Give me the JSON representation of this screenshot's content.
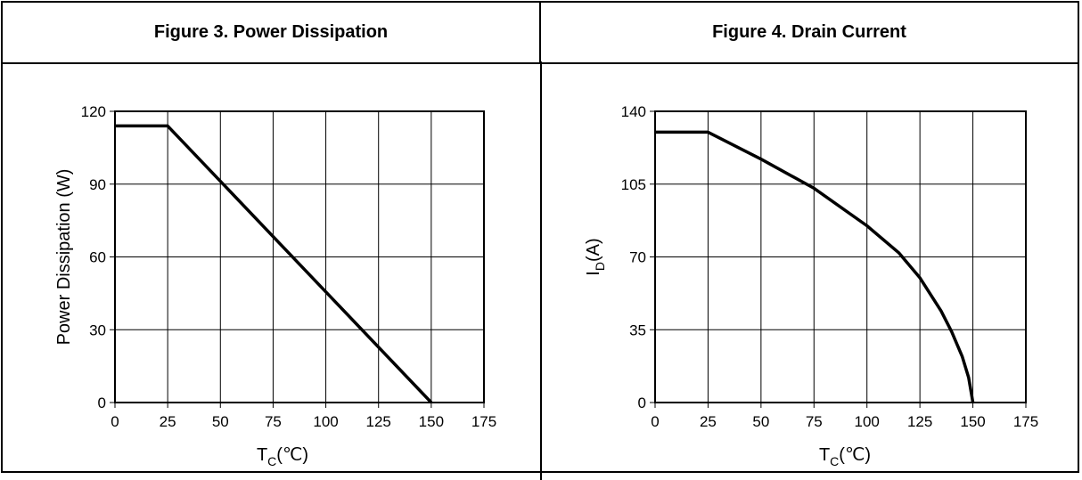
{
  "figures": [
    {
      "title": "Figure 3. Power Dissipation",
      "y_axis_label": "Power Dissipation (W)",
      "x_axis_label": {
        "base": "T",
        "subscript": "C",
        "unit": "(℃)"
      }
    },
    {
      "title": "Figure 4. Drain Current",
      "y_axis_label": {
        "base": "I",
        "subscript": "D",
        "unit": "(A)"
      },
      "x_axis_label": {
        "base": "T",
        "subscript": "C",
        "unit": "(℃)"
      }
    }
  ],
  "chart_data": [
    {
      "type": "line",
      "title": "Figure 3. Power Dissipation",
      "xlabel": "TC(℃)",
      "ylabel": "Power Dissipation (W)",
      "xlim": [
        0,
        175
      ],
      "ylim": [
        0,
        120
      ],
      "x_ticks": [
        0,
        25,
        50,
        75,
        100,
        125,
        150,
        175
      ],
      "y_ticks": [
        0,
        30,
        60,
        90,
        120
      ],
      "grid": true,
      "series": [
        {
          "x": [
            0,
            25,
            150
          ],
          "y": [
            114,
            114,
            0
          ]
        }
      ]
    },
    {
      "type": "line",
      "title": "Figure 4. Drain Current",
      "xlabel": "TC(℃)",
      "ylabel": "ID(A)",
      "xlim": [
        0,
        175
      ],
      "ylim": [
        0,
        140
      ],
      "x_ticks": [
        0,
        25,
        50,
        75,
        100,
        125,
        150,
        175
      ],
      "y_ticks": [
        0,
        35,
        70,
        105,
        140
      ],
      "grid": true,
      "series": [
        {
          "x": [
            0,
            25,
            50,
            75,
            100,
            115,
            125,
            135,
            140,
            145,
            148,
            150
          ],
          "y": [
            130,
            130,
            117,
            103,
            85,
            72,
            60,
            44,
            34,
            22,
            12,
            0
          ]
        }
      ]
    }
  ]
}
